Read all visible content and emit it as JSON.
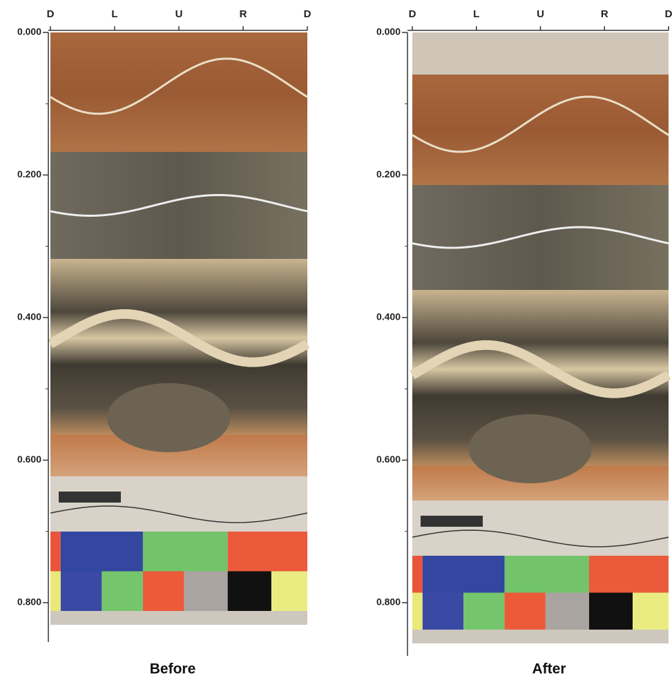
{
  "panels": [
    {
      "caption": "Before",
      "orientation_labels": [
        "D",
        "L",
        "U",
        "R",
        "D"
      ],
      "depth_ticks": [
        {
          "value": 0,
          "label": "0.000"
        },
        {
          "value": 0.2,
          "label": "0.200"
        },
        {
          "value": 0.4,
          "label": "0.400"
        },
        {
          "value": 0.6,
          "label": "0.600"
        },
        {
          "value": 0.8,
          "label": "0.800"
        }
      ]
    },
    {
      "caption": "After",
      "orientation_labels": [
        "D",
        "L",
        "U",
        "R",
        "D"
      ],
      "depth_ticks": [
        {
          "value": 0,
          "label": "0.000"
        },
        {
          "value": 0.2,
          "label": "0.200"
        },
        {
          "value": 0.4,
          "label": "0.400"
        },
        {
          "value": 0.6,
          "label": "0.600"
        },
        {
          "value": 0.8,
          "label": "0.800"
        }
      ]
    }
  ]
}
